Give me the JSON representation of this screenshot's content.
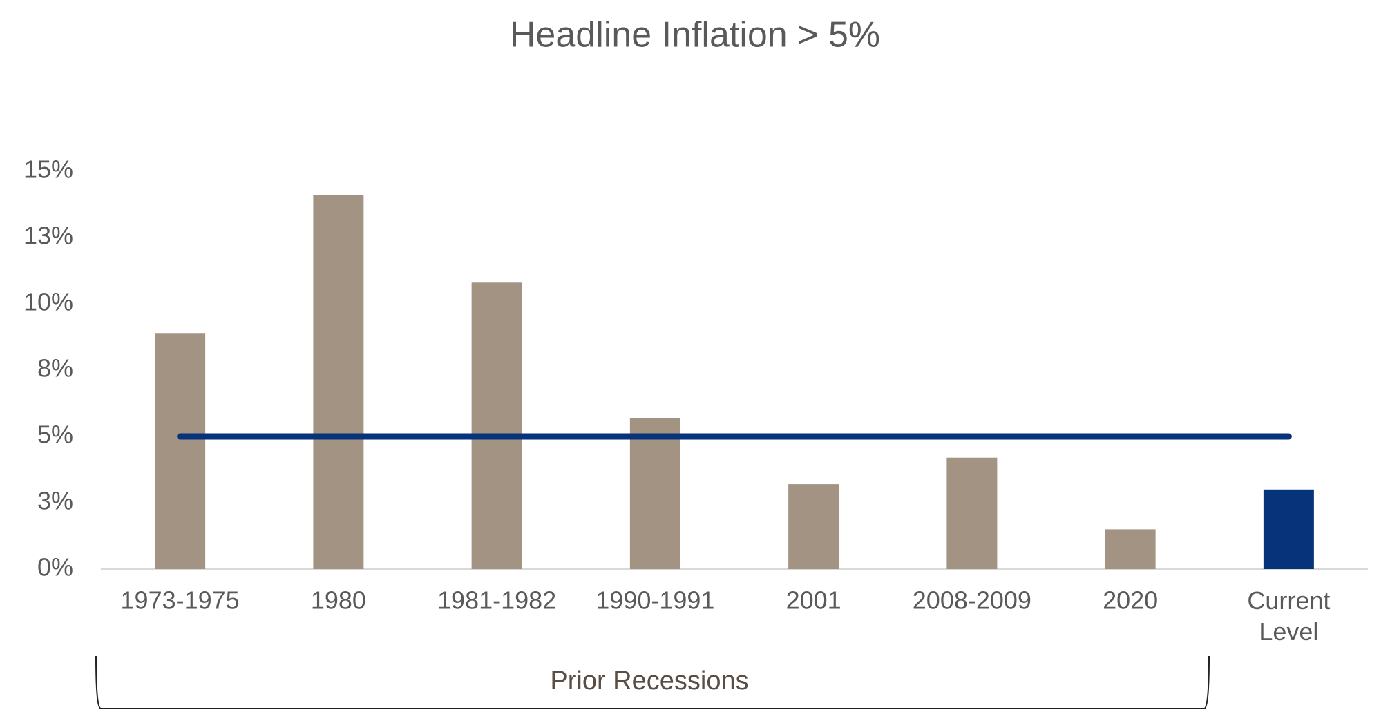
{
  "chart_data": {
    "type": "bar",
    "title": "Headline Inflation > 5%",
    "categories": [
      "1973-1975",
      "1980",
      "1981-1982",
      "1990-1991",
      "2001",
      "2008-2009",
      "2020",
      "Current Level"
    ],
    "values": [
      8.9,
      14.1,
      10.8,
      5.7,
      3.2,
      4.2,
      1.5,
      3.0
    ],
    "colors": [
      "#a39382",
      "#a39382",
      "#a39382",
      "#a39382",
      "#a39382",
      "#a39382",
      "#a39382",
      "#07337a"
    ],
    "line": {
      "values": [
        5,
        5,
        5,
        5,
        5,
        5,
        5,
        5
      ],
      "color": "#07337a"
    },
    "ylim": [
      0,
      15
    ],
    "yticks": [
      {
        "value": 0,
        "label": "0%"
      },
      {
        "value": 2.5,
        "label": "3%"
      },
      {
        "value": 5,
        "label": "5%"
      },
      {
        "value": 7.5,
        "label": "8%"
      },
      {
        "value": 10,
        "label": "10%"
      },
      {
        "value": 12.5,
        "label": "13%"
      },
      {
        "value": 15,
        "label": "15%"
      }
    ],
    "grid": false,
    "annotation": "Prior Recessions"
  }
}
